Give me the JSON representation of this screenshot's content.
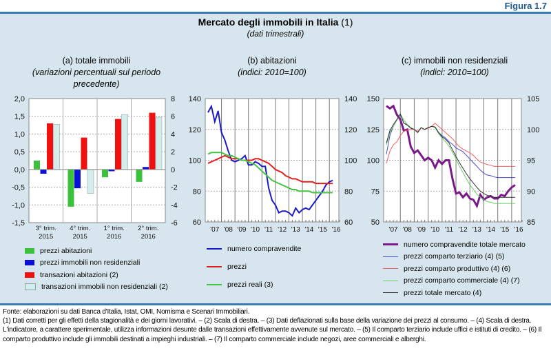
{
  "figure_label": "Figura 1.7",
  "title": "Mercato degli immobili in Italia",
  "title_note": "(1)",
  "subtitle": "(dati trimestrali)",
  "colors": {
    "background": "#d7e6ee",
    "accent": "#1a5a8a"
  },
  "chart_data": [
    {
      "type": "bar",
      "panel_title": "(a) totale immobili",
      "panel_subtitle": "(variazioni percentuali sul periodo precedente)",
      "categories": [
        [
          "3° trim.",
          "2015"
        ],
        [
          "4° trim.",
          "2015"
        ],
        [
          "1° trim.",
          "2016"
        ],
        [
          "2° trim.",
          "2016"
        ]
      ],
      "ylim": [
        -1.5,
        2.0
      ],
      "y_ticks": [
        "2,0",
        "1,5",
        "1,0",
        "0,5",
        "0,0",
        "-0,5",
        "-1,0",
        "-1,5"
      ],
      "y2lim": [
        -6,
        8
      ],
      "y2_ticks": [
        "8",
        "6",
        "4",
        "2",
        "0",
        "-2",
        "-4",
        "-6"
      ],
      "grid": true,
      "series": [
        {
          "name": "prezzi abitazioni",
          "axis": "left",
          "color": "#3cc13c",
          "values": [
            0.25,
            -1.05,
            -0.22,
            -0.35
          ]
        },
        {
          "name": "prezzi immobili non residenziali",
          "axis": "left",
          "color": "#0a10d8",
          "values": [
            -0.12,
            -0.53,
            -0.05,
            0.07
          ]
        },
        {
          "name": "transazioni abitazioni (2)",
          "axis": "right",
          "color": "#f01010",
          "values": [
            5.2,
            3.6,
            5.7,
            6.4
          ]
        },
        {
          "name": "transazioni immobili non residenziali (2)",
          "axis": "right",
          "color": "#d5ecec",
          "values": [
            5.1,
            -2.7,
            6.2,
            5.9
          ]
        }
      ]
    },
    {
      "type": "line",
      "panel_title": "(b) abitazioni",
      "panel_subtitle": "(indici: 2010=100)",
      "x_ticks": [
        "'07",
        "'08",
        "'09",
        "'10",
        "'11",
        "'12",
        "'13",
        "'14",
        "'15",
        "'16"
      ],
      "ylim": [
        60,
        140
      ],
      "y_ticks": [
        "140",
        "120",
        "100",
        "80",
        "60"
      ],
      "y2lim": [
        60,
        140
      ],
      "y2_ticks": [
        "140",
        "120",
        "100",
        "80",
        "60"
      ],
      "grid": true,
      "series": [
        {
          "name": "numero compravendite",
          "color": "#1a1ac8",
          "values": [
            131,
            135,
            125,
            132,
            118,
            113,
            106,
            100,
            99,
            100,
            101,
            103,
            97,
            97,
            99,
            98,
            96,
            96,
            82,
            74,
            71,
            66,
            67,
            67,
            66,
            64,
            69,
            66,
            68,
            69,
            68,
            71,
            74,
            77,
            80,
            84,
            86,
            87
          ]
        },
        {
          "name": "prezzi",
          "color": "#e02020",
          "values": [
            98,
            99,
            100,
            101,
            102,
            103,
            102,
            101,
            101,
            101,
            100,
            100,
            100,
            100,
            101,
            101,
            100,
            99,
            98,
            96,
            94,
            93,
            92,
            90,
            89,
            88,
            88,
            87,
            86,
            86,
            86,
            86,
            85,
            85,
            85,
            85,
            85,
            85
          ]
        },
        {
          "name": "prezzi reali (3)",
          "color": "#44c444",
          "values": [
            104,
            105,
            105,
            105,
            105,
            104,
            103,
            103,
            102,
            101,
            100,
            100,
            99,
            98,
            97,
            95,
            93,
            91,
            89,
            87,
            86,
            85,
            84,
            83,
            82,
            81,
            81,
            80,
            80,
            80,
            80,
            79,
            79,
            79,
            79,
            79,
            79,
            79
          ]
        }
      ]
    },
    {
      "type": "line",
      "panel_title": "(c) immobili non residenziali",
      "panel_subtitle": "(indici: 2010=100)",
      "x_ticks": [
        "'07",
        "'08",
        "'09",
        "'10",
        "'11",
        "'12",
        "'13",
        "'14",
        "'15",
        "'16"
      ],
      "ylim": [
        50,
        150
      ],
      "y_ticks": [
        "150",
        "125",
        "100",
        "75",
        "50"
      ],
      "y2lim": [
        85,
        105
      ],
      "y2_ticks": [
        "105",
        "100",
        "95",
        "90",
        "85"
      ],
      "grid": true,
      "series": [
        {
          "name": "numero compravendite totale mercato",
          "axis": "left",
          "color": "#7a1a8a",
          "values": [
            144,
            142,
            144,
            137,
            133,
            124,
            125,
            111,
            106,
            108,
            104,
            100,
            102,
            100,
            94,
            100,
            97,
            100,
            100,
            85,
            73,
            74,
            70,
            73,
            69,
            68,
            63,
            72,
            68,
            70,
            71,
            69,
            69,
            72,
            71,
            75,
            78,
            80
          ]
        },
        {
          "name": "prezzi comparto terziario (4) (5)",
          "axis": "right",
          "color": "#4a4ad0",
          "values": [
            96,
            99,
            100.5,
            101.5,
            102.5,
            101,
            100.8,
            100.3,
            100,
            99.5,
            100.3,
            100,
            100.3,
            100.5,
            100.4,
            99.5,
            99,
            98.6,
            98,
            97.6,
            97,
            96.7,
            96.4,
            95.8,
            95.2,
            94.6,
            94,
            93.4,
            92.9,
            92.6,
            92.5,
            92.3,
            92.2,
            92.2,
            92.2,
            92.2,
            92.2,
            92.2
          ]
        },
        {
          "name": "prezzi comparto produttivo (4) (6)",
          "axis": "right",
          "color": "#f06060",
          "values": [
            94.5,
            96.5,
            97.5,
            98,
            99,
            99.7,
            99.9,
            100,
            100,
            99.7,
            100.3,
            100,
            100.2,
            100.5,
            101,
            100.5,
            100,
            99.5,
            99,
            98.5,
            97.8,
            97.2,
            96.8,
            96.5,
            96.2,
            95.8,
            95.2,
            94.7,
            94.5,
            94.3,
            94.2,
            94,
            94,
            94,
            94,
            94,
            94,
            94
          ]
        },
        {
          "name": "prezzi comparto commerciale (4) (7)",
          "axis": "right",
          "color": "#66cc66",
          "values": [
            97.5,
            99.5,
            100.5,
            101.5,
            102.5,
            101.5,
            100.8,
            100.3,
            100,
            99.5,
            100.3,
            100,
            100.3,
            100.5,
            100.3,
            99.3,
            98.6,
            98,
            97.3,
            96.3,
            95.2,
            94,
            93,
            92,
            91,
            90.3,
            89.5,
            89,
            88.6,
            88.3,
            88.2,
            88,
            88,
            88,
            88,
            88,
            88,
            88
          ]
        },
        {
          "name": "prezzi totale mercato (4)",
          "axis": "right",
          "color": "#333333",
          "values": [
            97.8,
            99.8,
            100.8,
            101.6,
            102.5,
            101,
            100.7,
            100.2,
            100,
            99.5,
            100.3,
            100,
            100.3,
            100.5,
            100.4,
            99.5,
            98.8,
            98.4,
            97.8,
            96.7,
            95.6,
            94.6,
            93.7,
            92.8,
            92,
            91.3,
            90.6,
            90,
            89.6,
            89.3,
            89.2,
            89,
            89,
            89,
            89,
            89,
            89,
            89
          ]
        }
      ]
    }
  ],
  "notes": [
    "Fonte: elaborazioni su dati Banca d'Italia, Istat, OMI, Nomisma e Scenari Immobiliari.",
    "(1) Dati corretti per gli effetti della stagionalità e dei giorni lavorativi. – (2) Scala di destra. – (3) Dati deflazionati sulla base della variazione dei prezzi al consumo. – (4) Scala di destra. L'indicatore, a carattere sperimentale, utilizza informazioni desunte dalle transazioni effettivamente avvenute sul mercato. – (5) Il comparto terziario include uffici e istituti di credito. – (6) Il comparto produttivo include gli immobili destinati a impieghi industriali. – (7) Il comparto commerciale include negozi, aree commerciali e alberghi."
  ]
}
